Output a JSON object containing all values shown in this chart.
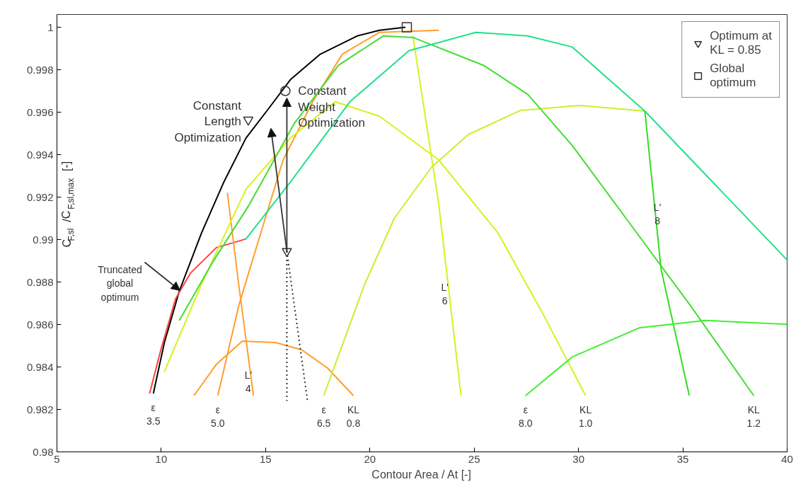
{
  "chart_data": {
    "type": "line",
    "xlabel": "Contour Area / At [-]",
    "ylabel": "C$_{F,sl}$/C$_{F,sl,max}$ [-]",
    "xlim": [
      5,
      40
    ],
    "ylim": [
      0.98,
      1.0006
    ],
    "xticks": [
      5,
      10,
      15,
      20,
      25,
      30,
      35,
      40
    ],
    "yticks": [
      0.98,
      0.982,
      0.984,
      0.986,
      0.988,
      0.99,
      0.992,
      0.994,
      0.996,
      0.998,
      1
    ],
    "grid": false,
    "legend": "top right",
    "series": [
      {
        "color": "#000000",
        "x": [
          9.62,
          10.15,
          10.86,
          11.93,
          13.0,
          14.06,
          15.13,
          16.19,
          17.62,
          19.39,
          20.46,
          21.7
        ],
        "values": [
          0.98275,
          0.98515,
          0.98756,
          0.99031,
          0.99271,
          0.99478,
          0.99615,
          0.99753,
          0.99873,
          0.99959,
          0.99986,
          1.0
        ]
      },
      {
        "color": "#ff4040",
        "x": [
          9.44,
          9.98,
          10.69,
          11.4,
          12.64,
          14.06
        ],
        "values": [
          0.98275,
          0.98481,
          0.98722,
          0.98842,
          0.98962,
          0.99003
        ]
      },
      {
        "color": "#ff9e2c",
        "x": [
          11.57,
          12.64,
          13.88,
          15.48,
          16.73,
          17.97,
          19.21
        ],
        "values": [
          0.98265,
          0.98412,
          0.98522,
          0.98515,
          0.98481,
          0.98395,
          0.98265
        ]
      },
      {
        "color": "#ff9e2c",
        "x": [
          12.71,
          13.71,
          14.77,
          15.84,
          17.26,
          18.68,
          20.46,
          23.3
        ],
        "values": [
          0.98265,
          0.98687,
          0.99031,
          0.99375,
          0.99649,
          0.99873,
          0.99976,
          0.99986
        ]
      },
      {
        "color": "#ff9e2c",
        "x": [
          13.17,
          13.71,
          14.42
        ],
        "values": [
          0.9922,
          0.9879,
          0.98265
        ]
      },
      {
        "color": "#d8f020",
        "x": [
          10.15,
          11.93,
          14.06,
          16.19,
          18.33,
          20.46,
          23.3,
          26.14,
          28.28,
          30.34
        ],
        "values": [
          0.98378,
          0.9879,
          0.99237,
          0.99478,
          0.99649,
          0.99581,
          0.99375,
          0.99031,
          0.98653,
          0.98265
        ]
      },
      {
        "color": "#c8f030",
        "x": [
          17.79,
          19.75,
          21.17,
          22.95,
          24.72,
          27.21,
          30.05,
          33.18
        ],
        "values": [
          0.98265,
          0.9879,
          0.991,
          0.9934,
          0.99495,
          0.99608,
          0.99632,
          0.99605
        ]
      },
      {
        "color": "#d8f020",
        "x": [
          22.06,
          23.3,
          24.37
        ],
        "values": [
          0.99959,
          0.99168,
          0.98265
        ]
      },
      {
        "color": "#44dd33",
        "x": [
          10.86,
          12.46,
          14.24,
          16.37,
          18.5,
          20.64,
          22.06,
          25.44,
          27.57,
          29.7,
          32.54,
          35.38,
          38.4
        ],
        "values": [
          0.98618,
          0.98893,
          0.99168,
          0.99546,
          0.99821,
          0.99959,
          0.99952,
          0.99821,
          0.99684,
          0.99443,
          0.99065,
          0.98687,
          0.98265
        ]
      },
      {
        "color": "#22e08a",
        "x": [
          14.06,
          16.19,
          19.04,
          21.88,
          25.08,
          27.57,
          29.7,
          33.18,
          36.09,
          40.0
        ],
        "values": [
          0.99003,
          0.99271,
          0.99649,
          0.9989,
          0.99976,
          0.99959,
          0.99907,
          0.99605,
          0.99306,
          0.98904
        ]
      },
      {
        "color": "#33dd22",
        "x": [
          33.18,
          33.96,
          35.31
        ],
        "values": [
          0.99605,
          0.98859,
          0.98265
        ]
      },
      {
        "color": "#44ee33",
        "x": [
          27.46,
          29.7,
          32.9,
          36.09,
          40.0
        ],
        "values": [
          0.98265,
          0.98447,
          0.98584,
          0.98619,
          0.98601
        ]
      },
      {
        "color": "#333333",
        "line_style": "dotted",
        "x": [
          16.02,
          16.02
        ],
        "values": [
          0.98945,
          0.9824
        ]
      },
      {
        "color": "#333333",
        "line_style": "dotted",
        "x": [
          16.02,
          17.01
        ],
        "values": [
          0.98945,
          0.9824
        ]
      },
      {
        "type": "scatter",
        "marker": "triangle",
        "color": "#333333",
        "x": [
          14.17
        ],
        "values": [
          0.99564
        ]
      },
      {
        "type": "scatter",
        "marker": "circle",
        "color": "#333333",
        "x": [
          15.95
        ],
        "values": [
          0.997
        ]
      },
      {
        "type": "scatter",
        "marker": "triangle",
        "color": "#333333",
        "name": "Optimum at\nKL = 0.85",
        "x": [
          16.02
        ],
        "values": [
          0.98945
        ]
      },
      {
        "type": "scatter",
        "marker": "square",
        "color": "#333333",
        "name": "Global\noptimum",
        "x": [
          21.77
        ],
        "values": [
          1.0
        ]
      }
    ],
    "annotations": [
      {
        "text": "Constant\nLength\nOptimization",
        "x": 14.17,
        "y": 0.99564
      },
      {
        "text": "Constant\nWeight\nOptimization",
        "x": 15.95,
        "y": 0.997
      },
      {
        "text": "Truncated\nglobal\noptimum",
        "x": 10.9,
        "y": 0.9876
      },
      {
        "text": "ε\n3.5",
        "x": 9.62,
        "y": 0.98275
      },
      {
        "text": "ε\n5.0",
        "x": 12.71,
        "y": 0.98265
      },
      {
        "text": "ε\n6.5",
        "x": 17.79,
        "y": 0.98265
      },
      {
        "text": "KL\n0.8",
        "x": 19.21,
        "y": 0.98265
      },
      {
        "text": "ε\n8.0",
        "x": 27.46,
        "y": 0.98265
      },
      {
        "text": "KL\n1.0",
        "x": 30.34,
        "y": 0.98265
      },
      {
        "text": "KL\n1.2",
        "x": 38.4,
        "y": 0.98265
      },
      {
        "text": "L'\n4",
        "x": 14.17,
        "y": 0.9843
      },
      {
        "text": "L'\n6",
        "x": 23.59,
        "y": 0.98842
      },
      {
        "text": "L'\n8",
        "x": 33.78,
        "y": 0.9922
      }
    ]
  }
}
